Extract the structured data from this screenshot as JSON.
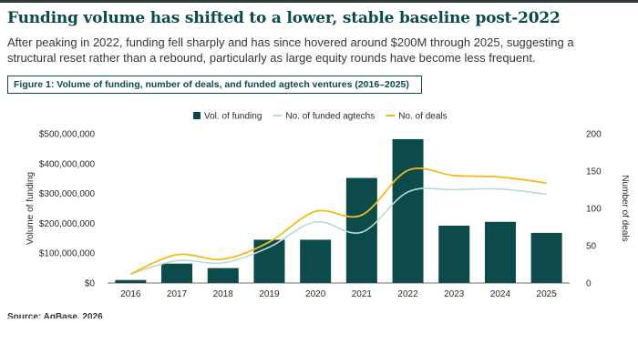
{
  "header": {
    "title": "Funding volume has shifted to a lower, stable baseline post-2022",
    "subtitle": "After peaking in 2022, funding fell sharply and has since hovered around $200M through 2025, suggesting a structural reset rather than a rebound, particularly as large equity rounds have become less frequent.",
    "figure_caption": "Figure 1: Volume of funding, number of deals, and funded agtech ventures (2016–2025)",
    "source": "Source: AgBase, 2026"
  },
  "chart_data": {
    "type": "bar",
    "categories": [
      "2016",
      "2017",
      "2018",
      "2019",
      "2020",
      "2021",
      "2022",
      "2023",
      "2024",
      "2025"
    ],
    "series": [
      {
        "name": "Vol. of funding",
        "kind": "bar",
        "axis": "left",
        "color": "#0d4a4b",
        "values": [
          10000000,
          65000000,
          50000000,
          145000000,
          145000000,
          352000000,
          482000000,
          192000000,
          205000000,
          168000000
        ]
      },
      {
        "name": "No. of funded agtechs",
        "kind": "line",
        "axis": "right",
        "color": "#b9dcd2",
        "values": [
          12,
          30,
          27,
          48,
          82,
          68,
          122,
          125,
          126,
          119
        ]
      },
      {
        "name": "No. of deals",
        "kind": "line",
        "axis": "right",
        "color": "#f3bb1b",
        "values": [
          12,
          38,
          32,
          55,
          96,
          91,
          151,
          144,
          142,
          134
        ]
      }
    ],
    "y_left": {
      "label": "Volume of funding",
      "range": [
        0,
        500000000
      ],
      "ticks": [
        "$0",
        "$100,000,000",
        "$200,000,000",
        "$300,000,000",
        "$400,000,000",
        "$500,000,000"
      ],
      "tick_values": [
        0,
        100000000,
        200000000,
        300000000,
        400000000,
        500000000
      ]
    },
    "y_right": {
      "label": "Number of deals",
      "range": [
        0,
        200
      ],
      "ticks": [
        "0",
        "50",
        "100",
        "150",
        "200"
      ],
      "tick_values": [
        0,
        50,
        100,
        150,
        200
      ]
    },
    "grid": false,
    "legend_position": "top-center"
  }
}
